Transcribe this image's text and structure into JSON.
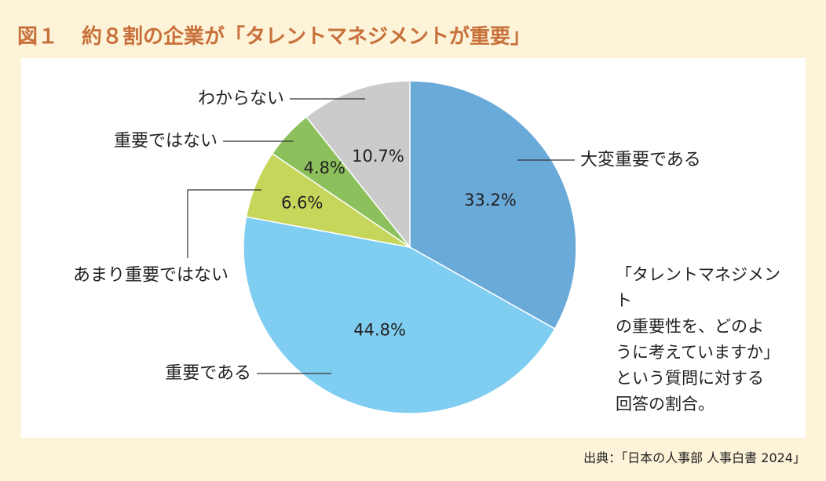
{
  "header": {
    "figure_number": "図１",
    "title": "約８割の企業が「タレントマネジメントが重要」"
  },
  "note": "「タレントマネジメント\nの重要性を、どのよ\nうに考えていますか」\nという質問に対する\n回答の割合。",
  "source": "出典：「日本の人事部 人事白書 2024」",
  "colors": {
    "background": "#fcf3d8",
    "title": "#c8703a",
    "panel": "#ffffff"
  },
  "chart_data": {
    "type": "pie",
    "title": "約８割の企業が「タレントマネジメントが重要」",
    "start": "12 o'clock",
    "direction": "clockwise",
    "slices": [
      {
        "label": "大変重要である",
        "value": 33.2,
        "value_label": "33.2%",
        "color": "#6aaad9"
      },
      {
        "label": "重要である",
        "value": 44.8,
        "value_label": "44.8%",
        "color": "#80cdf2"
      },
      {
        "label": "あまり重要ではない",
        "value": 6.6,
        "value_label": "6.6%",
        "color": "#c6d65a"
      },
      {
        "label": "重要ではない",
        "value": 4.8,
        "value_label": "4.8%",
        "color": "#8cc05c"
      },
      {
        "label": "わからない",
        "value": 10.7,
        "value_label": "10.7%",
        "color": "#cbcbcb"
      }
    ]
  }
}
